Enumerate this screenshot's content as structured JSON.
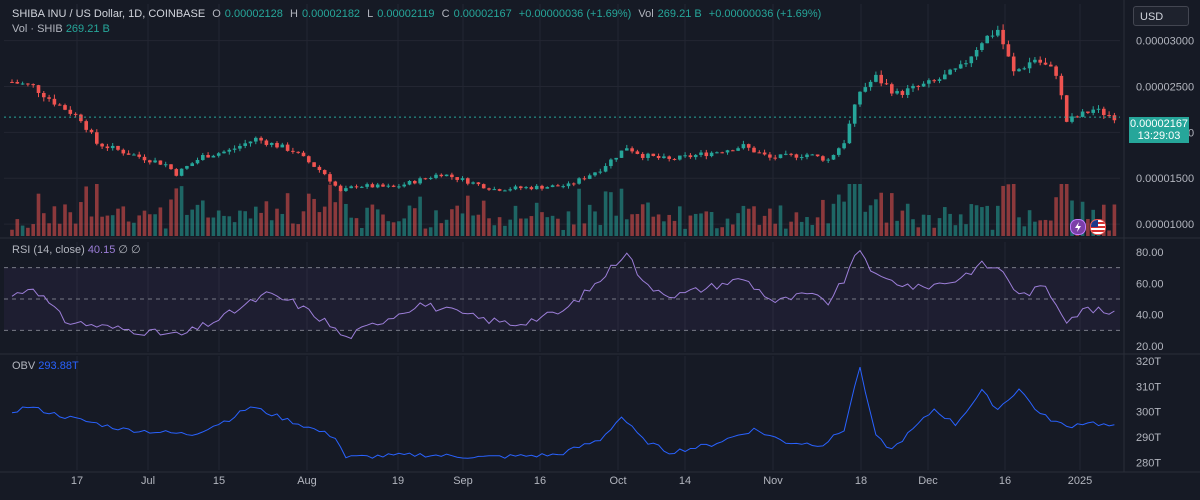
{
  "header": {
    "symbol": "SHIBA INU / US Dollar, 1D, COINBASE",
    "o_label": "O",
    "o_value": "0.00002128",
    "h_label": "H",
    "h_value": "0.00002182",
    "l_label": "L",
    "l_value": "0.00002119",
    "c_label": "C",
    "c_value": "0.00002167",
    "change": "+0.00000036 (+1.69%)",
    "vol_label": "Vol",
    "vol_value": "269.21 B",
    "vol_change": "+0.00000036 (+1.69%)"
  },
  "volume_legend": {
    "label": "Vol · SHIB",
    "value": "269.21 B"
  },
  "currency_button": "USD",
  "last_price": {
    "value": "0.00002167",
    "countdown": "13:29:03"
  },
  "rsi_legend": {
    "label": "RSI (14, close)",
    "value": "40.15",
    "extra": "∅ ∅"
  },
  "obv_legend": {
    "label": "OBV",
    "value": "293.88T"
  },
  "colors": {
    "up": "#26a69a",
    "down": "#ef5350",
    "rsi": "#9c7ed8",
    "obv": "#2962ff",
    "bg": "#161a25",
    "grid": "#232632"
  },
  "icons": [
    "flash-icon",
    "us-flag-icon"
  ],
  "chart_data": [
    {
      "type": "candlestick",
      "title": "SHIBA INU / US Dollar, 1D, COINBASE",
      "price_axis": {
        "ticks": [
          3e-05,
          2.5e-05,
          2e-05,
          1.5e-05,
          1e-05
        ],
        "tick_labels": [
          "0.00003000",
          "0.00002500",
          "0.00002000",
          "0.00001500",
          "0.00001000"
        ],
        "ylim": [
          8.7e-06,
          3.4e-05
        ]
      },
      "x_axis": {
        "ticks": [
          "17",
          "Jul",
          "15",
          "Aug",
          "19",
          "Sep",
          "16",
          "Oct",
          "14",
          "Nov",
          "18",
          "Dec",
          "16",
          "2025"
        ]
      },
      "close_anchors": [
        [
          "2024-06-04",
          2.55e-05
        ],
        [
          "2024-06-08",
          2.5e-05
        ],
        [
          "2024-06-12",
          2.33e-05
        ],
        [
          "2024-06-17",
          2.15e-05
        ],
        [
          "2024-06-20",
          1.88e-05
        ],
        [
          "2024-06-26",
          1.77e-05
        ],
        [
          "2024-07-03",
          1.65e-05
        ],
        [
          "2024-07-05",
          1.55e-05
        ],
        [
          "2024-07-10",
          1.74e-05
        ],
        [
          "2024-07-15",
          1.8e-05
        ],
        [
          "2024-07-20",
          1.93e-05
        ],
        [
          "2024-07-27",
          1.8e-05
        ],
        [
          "2024-08-02",
          1.55e-05
        ],
        [
          "2024-08-05",
          1.35e-05
        ],
        [
          "2024-08-08",
          1.42e-05
        ],
        [
          "2024-08-15",
          1.4e-05
        ],
        [
          "2024-08-24",
          1.55e-05
        ],
        [
          "2024-09-03",
          1.38e-05
        ],
        [
          "2024-09-10",
          1.4e-05
        ],
        [
          "2024-09-17",
          1.42e-05
        ],
        [
          "2024-09-23",
          1.6e-05
        ],
        [
          "2024-09-28",
          1.84e-05
        ],
        [
          "2024-10-01",
          1.75e-05
        ],
        [
          "2024-10-06",
          1.7e-05
        ],
        [
          "2024-10-14",
          1.78e-05
        ],
        [
          "2024-10-20",
          1.85e-05
        ],
        [
          "2024-10-25",
          1.72e-05
        ],
        [
          "2024-11-01",
          1.76e-05
        ],
        [
          "2024-11-05",
          1.7e-05
        ],
        [
          "2024-11-08",
          1.9e-05
        ],
        [
          "2024-11-11",
          2.45e-05
        ],
        [
          "2024-11-14",
          2.6e-05
        ],
        [
          "2024-11-18",
          2.42e-05
        ],
        [
          "2024-11-25",
          2.55e-05
        ],
        [
          "2024-11-30",
          2.7e-05
        ],
        [
          "2024-12-04",
          3e-05
        ],
        [
          "2024-12-07",
          3.12e-05
        ],
        [
          "2024-12-10",
          2.65e-05
        ],
        [
          "2024-12-14",
          2.8e-05
        ],
        [
          "2024-12-18",
          2.65e-05
        ],
        [
          "2024-12-20",
          2.12e-05
        ],
        [
          "2024-12-25",
          2.25e-05
        ],
        [
          "2024-12-29",
          2.17e-05
        ]
      ]
    },
    {
      "type": "bar",
      "title": "Vol · SHIB",
      "last_value": "269.21 B"
    },
    {
      "type": "line",
      "title": "RSI (14, close)",
      "ylim": [
        20,
        80
      ],
      "tick_labels": [
        "80.00",
        "60.00",
        "40.00",
        "20.00"
      ],
      "bands": [
        30,
        50,
        70
      ],
      "anchors": [
        [
          "2024-06-04",
          52
        ],
        [
          "2024-06-08",
          58
        ],
        [
          "2024-06-14",
          36
        ],
        [
          "2024-06-22",
          32
        ],
        [
          "2024-07-02",
          28
        ],
        [
          "2024-07-06",
          27
        ],
        [
          "2024-07-13",
          37
        ],
        [
          "2024-07-22",
          53
        ],
        [
          "2024-07-27",
          48
        ],
        [
          "2024-08-02",
          36
        ],
        [
          "2024-08-06",
          25
        ],
        [
          "2024-08-10",
          32
        ],
        [
          "2024-08-20",
          47
        ],
        [
          "2024-09-01",
          37
        ],
        [
          "2024-09-07",
          34
        ],
        [
          "2024-09-16",
          42
        ],
        [
          "2024-09-23",
          62
        ],
        [
          "2024-09-28",
          81
        ],
        [
          "2024-10-01",
          60
        ],
        [
          "2024-10-07",
          52
        ],
        [
          "2024-10-14",
          58
        ],
        [
          "2024-10-20",
          63
        ],
        [
          "2024-10-26",
          48
        ],
        [
          "2024-11-01",
          53
        ],
        [
          "2024-11-05",
          48
        ],
        [
          "2024-11-08",
          62
        ],
        [
          "2024-11-11",
          82
        ],
        [
          "2024-11-14",
          64
        ],
        [
          "2024-11-22",
          57
        ],
        [
          "2024-11-29",
          62
        ],
        [
          "2024-12-04",
          72
        ],
        [
          "2024-12-08",
          68
        ],
        [
          "2024-12-11",
          52
        ],
        [
          "2024-12-16",
          58
        ],
        [
          "2024-12-20",
          37
        ],
        [
          "2024-12-24",
          44
        ],
        [
          "2024-12-29",
          40
        ]
      ]
    },
    {
      "type": "line",
      "title": "OBV",
      "ylim": [
        277,
        322
      ],
      "tick_labels": [
        "320T",
        "310T",
        "300T",
        "290T",
        "280T"
      ],
      "anchors": [
        [
          "2024-06-04",
          300
        ],
        [
          "2024-06-07",
          302
        ],
        [
          "2024-06-14",
          298
        ],
        [
          "2024-06-25",
          293
        ],
        [
          "2024-07-08",
          291
        ],
        [
          "2024-07-15",
          297
        ],
        [
          "2024-07-19",
          302
        ],
        [
          "2024-07-27",
          296
        ],
        [
          "2024-08-04",
          290
        ],
        [
          "2024-08-06",
          282
        ],
        [
          "2024-08-20",
          283
        ],
        [
          "2024-09-01",
          282
        ],
        [
          "2024-09-15",
          283
        ],
        [
          "2024-09-23",
          289
        ],
        [
          "2024-09-27",
          298
        ],
        [
          "2024-10-01",
          289
        ],
        [
          "2024-10-06",
          284
        ],
        [
          "2024-10-14",
          287
        ],
        [
          "2024-10-22",
          293
        ],
        [
          "2024-10-28",
          288
        ],
        [
          "2024-11-04",
          287
        ],
        [
          "2024-11-08",
          293
        ],
        [
          "2024-11-11",
          318
        ],
        [
          "2024-11-14",
          290
        ],
        [
          "2024-11-17",
          285
        ],
        [
          "2024-11-21",
          293
        ],
        [
          "2024-11-25",
          301
        ],
        [
          "2024-11-29",
          295
        ],
        [
          "2024-12-04",
          308
        ],
        [
          "2024-12-07",
          301
        ],
        [
          "2024-12-11",
          309
        ],
        [
          "2024-12-15",
          299
        ],
        [
          "2024-12-20",
          294
        ],
        [
          "2024-12-24",
          296
        ],
        [
          "2024-12-29",
          294
        ]
      ]
    }
  ]
}
